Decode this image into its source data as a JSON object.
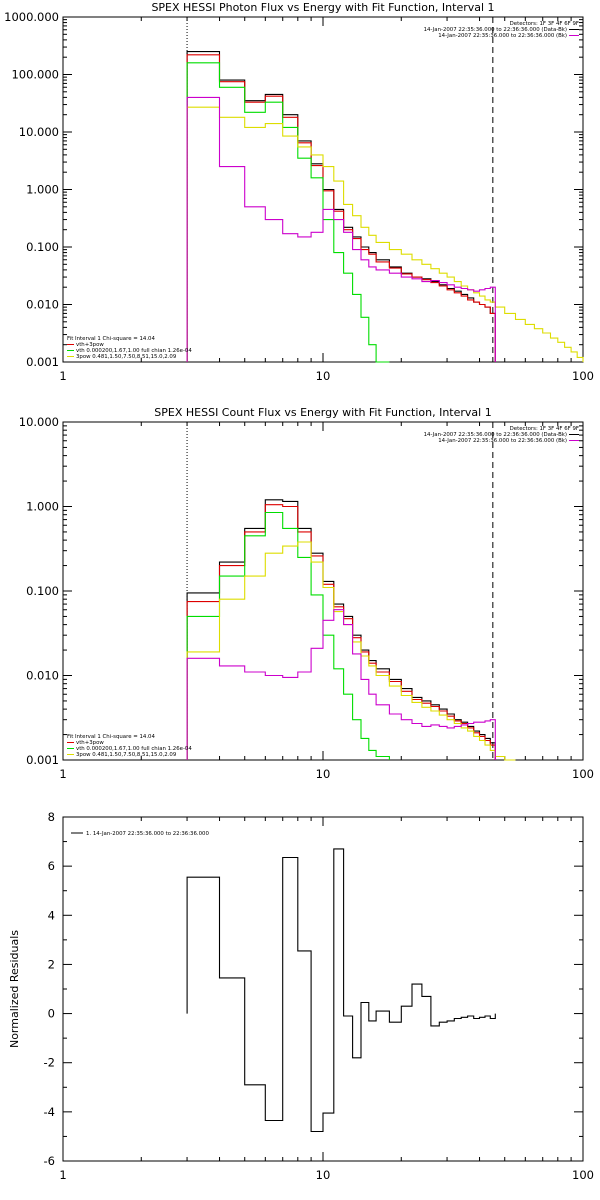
{
  "chart_data": [
    {
      "type": "line",
      "title": "SPEX HESSI Photon Flux vs Energy with Fit Function, Interval 1",
      "xlabel": "",
      "ylabel": "",
      "xscale": "log",
      "yscale": "log",
      "xlim": [
        1,
        100
      ],
      "ylim": [
        0.001,
        1000
      ],
      "x_ticks": [
        "1",
        "10",
        "100"
      ],
      "y_ticks": [
        "0.001",
        "0.010",
        "0.100",
        "1.000",
        "10.000",
        "100.000",
        "1000.000"
      ],
      "info": [
        "Detectors: 1F 3F 4F 6F 9F",
        "14-Jan-2007 22:35:36.000 to 22:36:36.000 (Data-Bk)",
        "14-Jan-2007 22:35:36.000 to 22:36:36.000 (Bk)"
      ],
      "info_colors": [
        "#000000",
        "#cc00cc"
      ],
      "fit_legend": [
        {
          "text": "Fit Interval 1    Chi-square = 14.04",
          "color": ""
        },
        {
          "text": "vth+3pow",
          "color": "#dd0000"
        },
        {
          "text": "vth 0.000200,1.67,1.00   full chian 1.26e-04",
          "color": "#00dd00"
        },
        {
          "text": "3pow 0.481,1.50,7.50,8.51,15.0,2.09",
          "color": "#dddd00"
        }
      ],
      "vlines": [
        {
          "x": 3.0,
          "style": "dotted"
        },
        {
          "x": 45,
          "style": "dashed"
        }
      ],
      "series": [
        {
          "color": "#000000",
          "edges": [
            3,
            4,
            5,
            6,
            7,
            8,
            9,
            10,
            11,
            12,
            13,
            14,
            15,
            16,
            18,
            20,
            22,
            24,
            26,
            28,
            30,
            32,
            34,
            36,
            38,
            40,
            42,
            44,
            46
          ],
          "values": [
            250,
            80,
            35,
            45,
            20,
            7,
            2.8,
            1.0,
            0.45,
            0.22,
            0.15,
            0.1,
            0.08,
            0.06,
            0.045,
            0.035,
            0.03,
            0.028,
            0.025,
            0.022,
            0.019,
            0.017,
            0.015,
            0.013,
            0.011,
            0.01,
            0.009,
            0.007
          ]
        },
        {
          "color": "#dd0000",
          "edges": [
            3,
            4,
            5,
            6,
            7,
            8,
            9,
            10,
            11,
            12,
            13,
            14,
            15,
            16,
            18,
            20,
            22,
            24,
            26,
            28,
            30,
            32,
            34,
            36,
            38,
            40,
            42,
            44,
            46
          ],
          "values": [
            220,
            75,
            33,
            42,
            18,
            6.5,
            2.6,
            0.95,
            0.42,
            0.2,
            0.14,
            0.09,
            0.075,
            0.055,
            0.043,
            0.034,
            0.03,
            0.027,
            0.024,
            0.021,
            0.018,
            0.016,
            0.014,
            0.012,
            0.011,
            0.01,
            0.009,
            0.007
          ]
        },
        {
          "color": "#00dd00",
          "edges": [
            3,
            4,
            5,
            6,
            7,
            8,
            9,
            10,
            11,
            12,
            13,
            14,
            15,
            16,
            18
          ],
          "values": [
            160,
            60,
            22,
            33,
            12,
            3.5,
            1.6,
            0.3,
            0.08,
            0.035,
            0.015,
            0.006,
            0.002,
            0.001
          ]
        },
        {
          "color": "#dddd00",
          "edges": [
            3,
            4,
            5,
            6,
            7,
            8,
            9,
            10,
            11,
            12,
            13,
            14,
            15,
            16,
            18,
            20,
            22,
            24,
            26,
            28,
            30,
            32,
            34,
            36,
            38,
            40,
            42,
            44,
            46,
            50,
            55,
            60,
            65,
            70,
            75,
            80,
            85,
            90,
            95,
            100
          ],
          "values": [
            27,
            18,
            12,
            14,
            8.5,
            5.5,
            4,
            2.5,
            1.4,
            0.55,
            0.35,
            0.22,
            0.16,
            0.12,
            0.09,
            0.075,
            0.06,
            0.05,
            0.042,
            0.035,
            0.03,
            0.025,
            0.021,
            0.018,
            0.016,
            0.014,
            0.012,
            0.011,
            0.009,
            0.007,
            0.0055,
            0.0045,
            0.0038,
            0.0032,
            0.0026,
            0.0022,
            0.0018,
            0.0015,
            0.0012
          ]
        },
        {
          "color": "#cc00cc",
          "edges": [
            3,
            4,
            5,
            6,
            7,
            8,
            9,
            10,
            11,
            12,
            13,
            14,
            15,
            16,
            18,
            20,
            22,
            24,
            26,
            28,
            30,
            32,
            34,
            36,
            38,
            40,
            42,
            44,
            46
          ],
          "values": [
            40,
            2.5,
            0.5,
            0.3,
            0.17,
            0.15,
            0.18,
            0.45,
            0.3,
            0.18,
            0.09,
            0.06,
            0.045,
            0.04,
            0.035,
            0.03,
            0.028,
            0.025,
            0.026,
            0.024,
            0.022,
            0.02,
            0.019,
            0.018,
            0.017,
            0.018,
            0.019,
            0.02
          ]
        }
      ]
    },
    {
      "type": "line",
      "title": "SPEX HESSI Count Flux vs Energy with Fit Function, Interval 1",
      "xlabel": "",
      "ylabel": "",
      "xscale": "log",
      "yscale": "log",
      "xlim": [
        1,
        100
      ],
      "ylim": [
        0.001,
        10
      ],
      "x_ticks": [
        "1",
        "10",
        "100"
      ],
      "y_ticks": [
        "0.001",
        "0.010",
        "0.100",
        "1.000",
        "10.000"
      ],
      "info": [
        "Detectors: 1F 3F 4F 6F 9F",
        "14-Jan-2007 22:35:36.000 to 22:36:36.000 (Data-Bk)",
        "14-Jan-2007 22:35:36.000 to 22:36:36.000 (Bk)"
      ],
      "info_colors": [
        "#000000",
        "#cc00cc"
      ],
      "fit_legend": [
        {
          "text": "Fit Interval 1    Chi-square = 14.04",
          "color": ""
        },
        {
          "text": "vth+3pow",
          "color": "#dd0000"
        },
        {
          "text": "vth 0.000200,1.67,1.00   full chian 1.26e-04",
          "color": "#00dd00"
        },
        {
          "text": "3pow 0.481,1.50,7.50,8.51,15.0,2.09",
          "color": "#dddd00"
        }
      ],
      "vlines": [
        {
          "x": 3.0,
          "style": "dotted"
        },
        {
          "x": 45,
          "style": "dashed"
        }
      ],
      "series": [
        {
          "color": "#000000",
          "edges": [
            3,
            4,
            5,
            6,
            7,
            8,
            9,
            10,
            11,
            12,
            13,
            14,
            15,
            16,
            18,
            20,
            22,
            24,
            26,
            28,
            30,
            32,
            34,
            36,
            38,
            40,
            42,
            44,
            46
          ],
          "values": [
            0.095,
            0.22,
            0.55,
            1.2,
            1.15,
            0.55,
            0.28,
            0.13,
            0.07,
            0.05,
            0.03,
            0.02,
            0.015,
            0.012,
            0.009,
            0.007,
            0.0055,
            0.005,
            0.0045,
            0.004,
            0.0035,
            0.003,
            0.0028,
            0.0025,
            0.0022,
            0.002,
            0.0018,
            0.0016
          ]
        },
        {
          "color": "#dd0000",
          "edges": [
            3,
            4,
            5,
            6,
            7,
            8,
            9,
            10,
            11,
            12,
            13,
            14,
            15,
            16,
            18,
            20,
            22,
            24,
            26,
            28,
            30,
            32,
            34,
            36,
            38,
            40,
            42,
            44,
            46
          ],
          "values": [
            0.075,
            0.2,
            0.5,
            1.05,
            1.0,
            0.5,
            0.26,
            0.12,
            0.065,
            0.047,
            0.028,
            0.019,
            0.014,
            0.011,
            0.0085,
            0.0065,
            0.0052,
            0.0047,
            0.0043,
            0.0038,
            0.0033,
            0.0029,
            0.0027,
            0.0024,
            0.0021,
            0.0019,
            0.0017,
            0.0015
          ]
        },
        {
          "color": "#00dd00",
          "edges": [
            3,
            4,
            5,
            6,
            7,
            8,
            9,
            10,
            11,
            12,
            13,
            14,
            15,
            16,
            18
          ],
          "values": [
            0.05,
            0.15,
            0.45,
            0.85,
            0.55,
            0.25,
            0.09,
            0.03,
            0.012,
            0.006,
            0.003,
            0.0018,
            0.0013,
            0.0011
          ]
        },
        {
          "color": "#dddd00",
          "edges": [
            3,
            4,
            5,
            6,
            7,
            8,
            9,
            10,
            11,
            12,
            13,
            14,
            15,
            16,
            18,
            20,
            22,
            24,
            26,
            28,
            30,
            32,
            34,
            36,
            38,
            40,
            42,
            44,
            46,
            50,
            55
          ],
          "values": [
            0.019,
            0.08,
            0.15,
            0.28,
            0.34,
            0.38,
            0.22,
            0.11,
            0.057,
            0.04,
            0.025,
            0.017,
            0.013,
            0.01,
            0.0075,
            0.0058,
            0.0048,
            0.0042,
            0.0038,
            0.0034,
            0.003,
            0.0027,
            0.0024,
            0.0022,
            0.0019,
            0.0017,
            0.0015,
            0.0013,
            0.0011,
            0.001
          ]
        },
        {
          "color": "#cc00cc",
          "edges": [
            3,
            4,
            5,
            6,
            7,
            8,
            9,
            10,
            11,
            12,
            13,
            14,
            15,
            16,
            18,
            20,
            22,
            24,
            26,
            28,
            30,
            32,
            34,
            36,
            38,
            40,
            42,
            44,
            46
          ],
          "values": [
            0.016,
            0.013,
            0.011,
            0.01,
            0.0095,
            0.011,
            0.021,
            0.045,
            0.06,
            0.04,
            0.018,
            0.009,
            0.006,
            0.0045,
            0.0035,
            0.003,
            0.0027,
            0.0025,
            0.0026,
            0.0025,
            0.0024,
            0.0025,
            0.0026,
            0.0027,
            0.0028,
            0.0028,
            0.0029,
            0.003
          ]
        }
      ]
    },
    {
      "type": "line",
      "title": "",
      "xlabel": "",
      "ylabel": "Normalized Residuals",
      "xscale": "log",
      "yscale": "linear",
      "xlim": [
        1,
        100
      ],
      "ylim": [
        -6,
        8
      ],
      "x_ticks": [
        "1",
        "10",
        "100"
      ],
      "y_ticks": [
        "-6",
        "-4",
        "-2",
        "0",
        "2",
        "4",
        "6",
        "8"
      ],
      "legend": "1. 14-Jan-2007 22:35:36.000 to 22:36:36.000",
      "series": [
        {
          "color": "#000000",
          "edges": [
            3,
            4,
            5,
            6,
            7,
            8,
            9,
            10,
            11,
            12,
            13,
            14,
            15,
            16,
            18,
            20,
            22,
            24,
            26,
            28,
            30,
            32,
            34,
            36,
            38,
            40,
            42,
            44,
            46
          ],
          "values": [
            5.55,
            1.45,
            -2.9,
            -4.35,
            6.35,
            2.55,
            -4.8,
            -4.05,
            6.7,
            -0.1,
            -1.8,
            0.45,
            -0.3,
            0.1,
            -0.35,
            0.3,
            1.2,
            0.7,
            -0.5,
            -0.35,
            -0.3,
            -0.2,
            -0.15,
            -0.1,
            -0.2,
            -0.15,
            -0.1,
            -0.2
          ]
        }
      ]
    }
  ]
}
